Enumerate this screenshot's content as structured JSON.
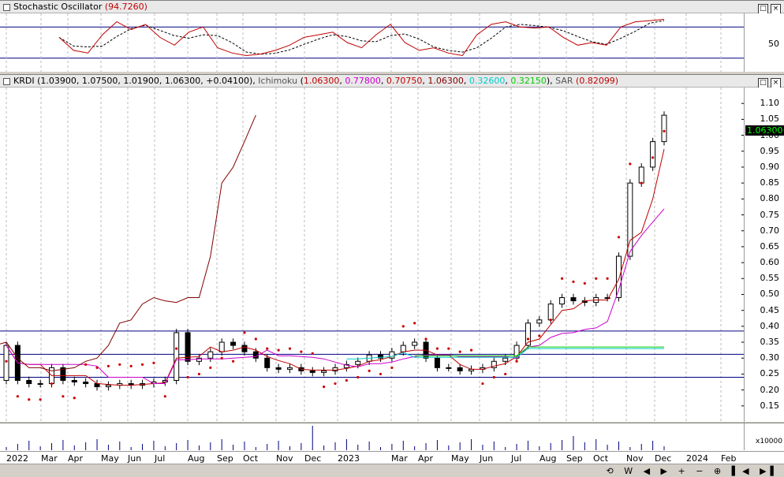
{
  "stoch_panel": {
    "title": "Stochastic Oscillator",
    "value": "(94.7260)",
    "y_tick": "50"
  },
  "price_panel": {
    "symbol": "KRDI",
    "ohlc": "(1.03900, 1.07500, 1.01900, 1.06300, +0.04100),",
    "ichimoku_label": "Ichimoku",
    "ichimoku_vals": [
      "1.06300",
      "0.77800",
      "0.70750",
      "1.06300",
      "0.32600",
      "0.32150"
    ],
    "sar_label": "SAR",
    "sar_val": "(0.82099)",
    "last_price": "1.06300",
    "y_ticks": [
      "1.10",
      "1.05",
      "1.00",
      "0.95",
      "0.90",
      "0.85",
      "0.80",
      "0.75",
      "0.70",
      "0.65",
      "0.60",
      "0.55",
      "0.50",
      "0.45",
      "0.40",
      "0.35",
      "0.30",
      "0.25",
      "0.20",
      "0.15"
    ]
  },
  "volume_panel": {
    "scale_label": "x10000"
  },
  "x_axis": {
    "labels": [
      "2022",
      "Mar",
      "Apr",
      "May",
      "Jun",
      "Jul",
      "Aug",
      "Sep",
      "Oct",
      "Nov",
      "Dec",
      "2023",
      "Mar",
      "Apr",
      "May",
      "Jun",
      "Jul",
      "Aug",
      "Sep",
      "Oct",
      "Nov",
      "Dec",
      "2024",
      "Feb"
    ]
  },
  "colors": {
    "up_candle": "#ffffff",
    "down_candle": "#000000",
    "stoch_k": "#c00000",
    "stoch_d": "#000000",
    "tenkan": "#c00000",
    "kijun": "#cc00cc",
    "senkou_a": "#00cc00",
    "senkou_b": "#00cccc",
    "chikou": "#800000",
    "sar": "#cc0000",
    "hline": "#000080"
  },
  "chart_data": {
    "type": "candlestick",
    "symbol": "KRDI",
    "ylim": [
      0.1,
      1.15
    ],
    "horizontal_lines": [
      0.385,
      0.312,
      0.24
    ],
    "weeks": 51,
    "close": [
      0.34,
      0.23,
      0.22,
      0.22,
      0.27,
      0.23,
      0.225,
      0.22,
      0.21,
      0.215,
      0.22,
      0.215,
      0.22,
      0.225,
      0.23,
      0.38,
      0.29,
      0.3,
      0.32,
      0.35,
      0.34,
      0.32,
      0.3,
      0.27,
      0.265,
      0.27,
      0.26,
      0.255,
      0.26,
      0.27,
      0.28,
      0.29,
      0.31,
      0.3,
      0.32,
      0.34,
      0.35,
      0.3,
      0.27,
      0.27,
      0.26,
      0.265,
      0.27,
      0.29,
      0.3,
      0.34,
      0.41,
      0.42,
      0.47,
      0.49,
      0.48,
      0.475,
      0.49,
      0.49,
      0.62,
      0.85,
      0.9,
      0.98,
      1.063
    ],
    "stochastic_k": [
      60,
      35,
      30,
      65,
      90,
      75,
      85,
      60,
      45,
      70,
      80,
      40,
      30,
      25,
      28,
      35,
      45,
      60,
      65,
      70,
      50,
      40,
      65,
      85,
      50,
      35,
      40,
      30,
      25,
      65,
      85,
      90,
      80,
      78,
      80,
      60,
      45,
      50,
      45,
      80,
      90,
      92,
      94.7
    ],
    "stochastic_levels": [
      80,
      20
    ]
  }
}
